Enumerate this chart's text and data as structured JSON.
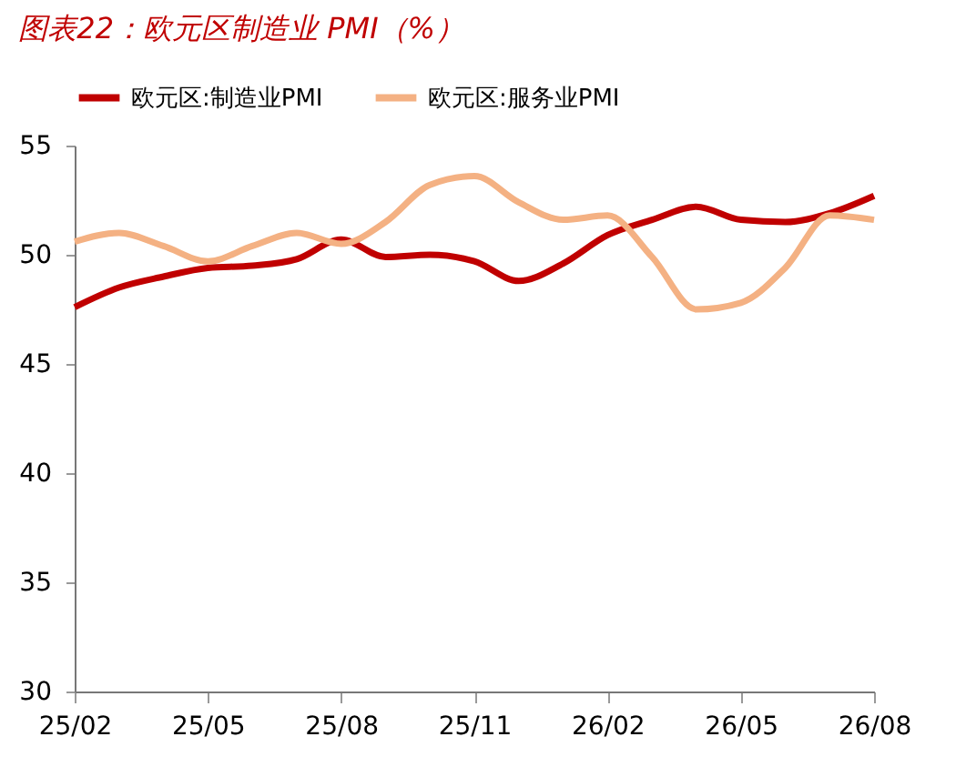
{
  "chart_data": {
    "type": "line",
    "title": "图表22：欧元区制造业 PMI（%）",
    "categories": [
      "25/02",
      null,
      null,
      "25/05",
      null,
      null,
      "25/08",
      null,
      null,
      "25/11",
      null,
      null,
      "26/02",
      null,
      null,
      "26/05",
      null,
      null,
      "26/08"
    ],
    "series": [
      {
        "name": "欧元区:制造业PMI",
        "color": "#c00000",
        "values": [
          47.6,
          48.5,
          49.0,
          49.4,
          49.5,
          49.8,
          50.7,
          49.9,
          50.0,
          49.7,
          48.8,
          49.6,
          50.9,
          51.6,
          52.2,
          51.6,
          51.5,
          51.9,
          52.7
        ]
      },
      {
        "name": "欧元区:服务业PMI",
        "color": "#f4b183",
        "values": [
          50.6,
          51.0,
          50.4,
          49.7,
          50.4,
          51.0,
          50.5,
          51.5,
          53.2,
          53.6,
          52.4,
          51.6,
          51.8,
          49.9,
          47.5,
          47.8,
          49.4,
          51.8,
          51.6
        ]
      }
    ],
    "ylim": [
      30,
      55
    ],
    "yticks": [
      30,
      35,
      40,
      45,
      50,
      55
    ],
    "grid": false,
    "legend": "top",
    "marker": "none",
    "line_style": "solid"
  }
}
